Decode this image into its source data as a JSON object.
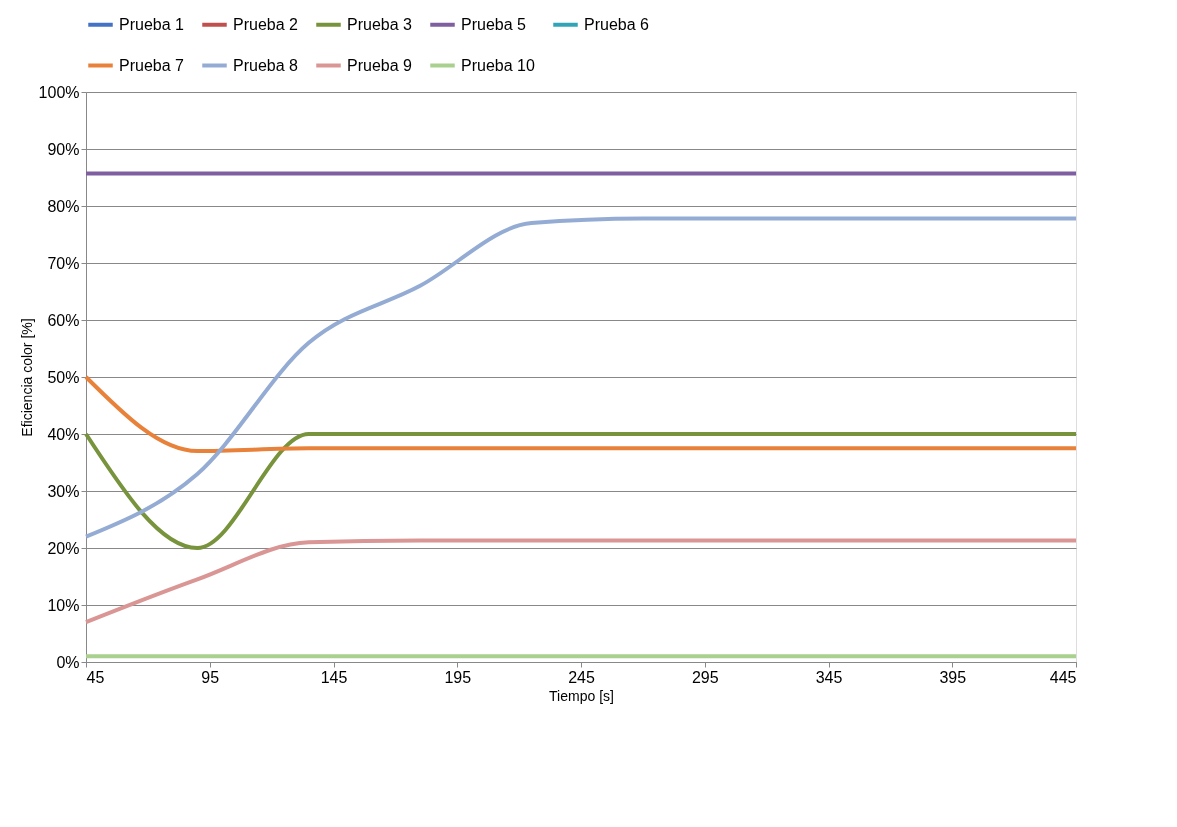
{
  "chart_data": {
    "type": "line",
    "xlabel": "Tiempo [s]",
    "ylabel": "Eficiencia color [%]",
    "x": [
      45,
      90,
      135,
      180,
      225,
      270,
      315,
      360,
      405,
      445
    ],
    "series": [
      {
        "name": "Prueba 1",
        "color": "#4472c4",
        "values": [
          null,
          null,
          null,
          null,
          null,
          null,
          null,
          null,
          null,
          null
        ]
      },
      {
        "name": "Prueba 2",
        "color": "#c0504d",
        "values": [
          null,
          null,
          null,
          null,
          null,
          null,
          null,
          null,
          null,
          null
        ]
      },
      {
        "name": "Prueba 3",
        "color": "#77933c",
        "values": [
          40,
          20,
          40,
          40,
          40,
          40,
          40,
          40,
          40,
          40
        ]
      },
      {
        "name": "Prueba 5",
        "color": "#7f5f9f",
        "values": [
          85.7,
          85.7,
          85.7,
          85.7,
          85.7,
          85.7,
          85.7,
          85.7,
          85.7,
          85.7
        ]
      },
      {
        "name": "Prueba 6",
        "color": "#31a4b8",
        "values": [
          null,
          null,
          null,
          null,
          null,
          null,
          null,
          null,
          null,
          null
        ]
      },
      {
        "name": "Prueba 7",
        "color": "#e8823a",
        "values": [
          50,
          37,
          37.5,
          37.5,
          37.5,
          37.5,
          37.5,
          37.5,
          37.5,
          37.5
        ]
      },
      {
        "name": "Prueba 8",
        "color": "#94acd4",
        "values": [
          22,
          33,
          56,
          66,
          77,
          77.8,
          77.8,
          77.8,
          77.8,
          77.8
        ]
      },
      {
        "name": "Prueba 9",
        "color": "#d99694",
        "values": [
          7,
          14.5,
          21,
          21.3,
          21.3,
          21.3,
          21.3,
          21.3,
          21.3,
          21.3
        ]
      },
      {
        "name": "Prueba 10",
        "color": "#a9d08e",
        "values": [
          1,
          1,
          1,
          1,
          1,
          1,
          1,
          1,
          1,
          1
        ]
      }
    ],
    "xlim": [
      45,
      445
    ],
    "xticks": [
      45,
      95,
      145,
      195,
      245,
      295,
      345,
      395,
      445
    ],
    "ylim": [
      0,
      100
    ],
    "yticks": [
      {
        "value": 0,
        "label": "0%"
      },
      {
        "value": 10,
        "label": "10%"
      },
      {
        "value": 20,
        "label": "20%"
      },
      {
        "value": 30,
        "label": "30%"
      },
      {
        "value": 40,
        "label": "40%"
      },
      {
        "value": 50,
        "label": "50%"
      },
      {
        "value": 60,
        "label": "60%"
      },
      {
        "value": 70,
        "label": "70%"
      },
      {
        "value": 80,
        "label": "80%"
      },
      {
        "value": 90,
        "label": "90%"
      },
      {
        "value": 100,
        "label": "100%"
      }
    ],
    "grid": "y",
    "legend": "top",
    "marker": "none",
    "line_style": "solid"
  }
}
